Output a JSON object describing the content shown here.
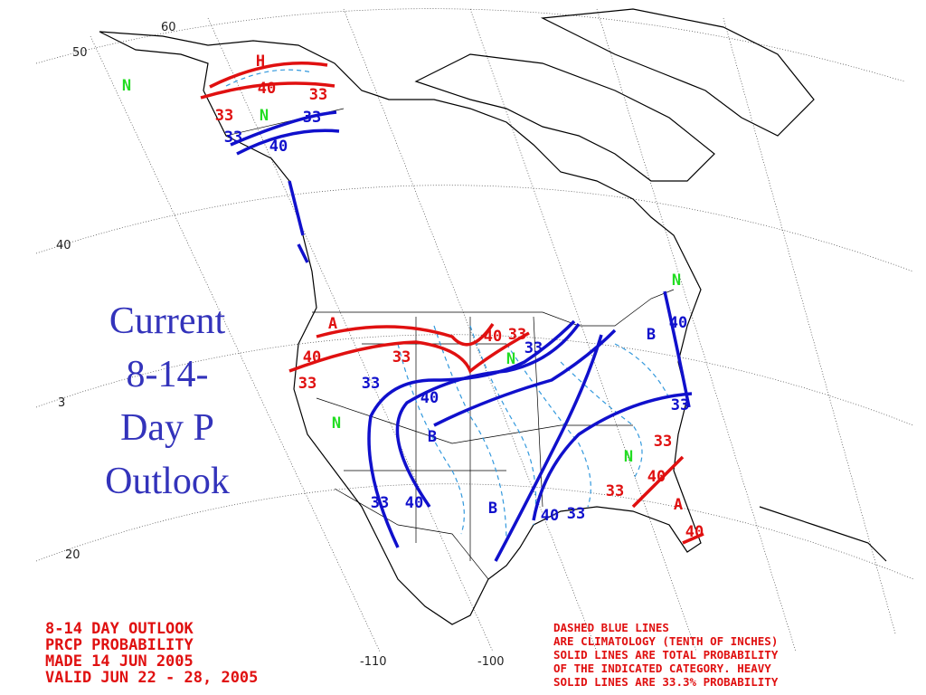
{
  "slide_title": [
    "Current",
    "8-14-",
    "Day P",
    "Outlook"
  ],
  "graticule_labels": {
    "latitude": [
      "50",
      "60",
      "40",
      "3",
      "20"
    ],
    "longitude": [
      "-110",
      "-100"
    ]
  },
  "outlook_header": [
    "8-14 DAY OUTLOOK",
    "PRCP PROBABILITY",
    "MADE  14 JUN 2005",
    "VALID  JUN 22 - 28, 2005"
  ],
  "legend_note": [
    "DASHED BLUE LINES",
    "ARE CLIMATOLOGY (TENTH OF INCHES)",
    "SOLID LINES ARE TOTAL PROBABILITY",
    "OF THE INDICATED CATEGORY. HEAVY",
    "SOLID LINES ARE 33.3% PROBABILITY"
  ],
  "map_labels": {
    "above": [
      "H",
      "40",
      "33",
      "33",
      "A",
      "40",
      "33",
      "33",
      "40",
      "33",
      "33",
      "40",
      "33",
      "A",
      "40"
    ],
    "below": [
      "33",
      "33",
      "40",
      "33",
      "B",
      "40",
      "33",
      "40",
      "B",
      "33",
      "33",
      "40",
      "B",
      "40",
      "33"
    ],
    "normal": [
      "N",
      "N",
      "N",
      "N",
      "N",
      "N"
    ]
  }
}
